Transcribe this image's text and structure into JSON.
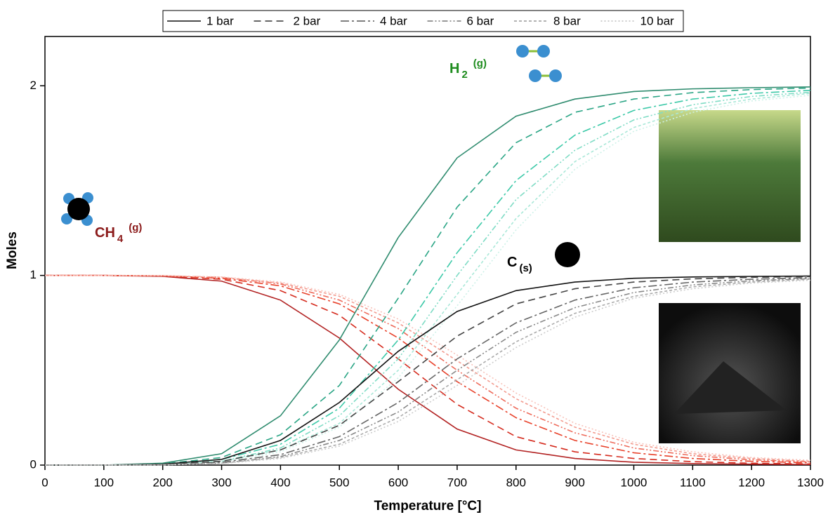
{
  "chart_data": {
    "type": "line",
    "x_label": "Temperature [°C]",
    "y_label": "Moles",
    "x": [
      0,
      100,
      200,
      300,
      400,
      500,
      600,
      700,
      800,
      900,
      1000,
      1100,
      1200,
      1300
    ],
    "xlim": [
      0,
      1300
    ],
    "xticks": [
      0,
      100,
      200,
      300,
      400,
      500,
      600,
      700,
      800,
      900,
      1000,
      1100,
      1200,
      1300
    ],
    "ylim": [
      0,
      2.26
    ],
    "yticks": [
      0,
      1,
      2
    ],
    "pressures": [
      {
        "name": "1 bar",
        "dash": "none"
      },
      {
        "name": "2 bar",
        "dash": "10,6"
      },
      {
        "name": "4 bar",
        "dash": "12,4,3,4"
      },
      {
        "name": "6 bar",
        "dash": "8,3,2,3,2,3"
      },
      {
        "name": "8 bar",
        "dash": "4,3"
      },
      {
        "name": "10 bar",
        "dash": "2,3"
      }
    ],
    "legend_colors": [
      "#111111",
      "#333333",
      "#555555",
      "#777777",
      "#999999",
      "#bbbbbb"
    ],
    "species": [
      {
        "label": {
          "main": "CH",
          "sub": "4",
          "state": "(g)"
        },
        "label_color": "#8b1a1a",
        "series": [
          {
            "color": "#b22222",
            "values": [
              1,
              1,
              0.995,
              0.97,
              0.87,
              0.67,
              0.4,
              0.19,
              0.08,
              0.035,
              0.015,
              0.008,
              0.005,
              0.003
            ]
          },
          {
            "color": "#d52b1e",
            "values": [
              1,
              1,
              0.997,
              0.98,
              0.92,
              0.79,
              0.56,
              0.32,
              0.15,
              0.07,
              0.035,
              0.018,
              0.01,
              0.006
            ]
          },
          {
            "color": "#e8412a",
            "values": [
              1,
              1,
              0.998,
              0.985,
              0.945,
              0.85,
              0.67,
              0.44,
              0.25,
              0.13,
              0.065,
              0.035,
              0.02,
              0.012
            ]
          },
          {
            "color": "#ee6a5a",
            "values": [
              1,
              1,
              0.998,
              0.99,
              0.955,
              0.87,
              0.72,
              0.5,
              0.3,
              0.17,
              0.09,
              0.05,
              0.028,
              0.017
            ]
          },
          {
            "color": "#f39b8f",
            "values": [
              1,
              1,
              0.999,
              0.99,
              0.96,
              0.89,
              0.75,
              0.55,
              0.35,
              0.2,
              0.11,
              0.06,
              0.035,
              0.02
            ]
          },
          {
            "color": "#f8c2ba",
            "values": [
              1,
              1,
              0.999,
              0.992,
              0.965,
              0.9,
              0.77,
              0.58,
              0.38,
              0.22,
              0.12,
              0.07,
              0.04,
              0.025
            ]
          }
        ]
      },
      {
        "label": {
          "main": "H",
          "sub": "2",
          "state": "(g)"
        },
        "label_color": "#1e8c1e",
        "series": [
          {
            "color": "#2e8b6e",
            "values": [
              0,
              0,
              0.01,
              0.06,
              0.26,
              0.66,
              1.2,
              1.62,
              1.84,
              1.93,
              1.97,
              1.984,
              1.99,
              1.994
            ]
          },
          {
            "color": "#2aa585",
            "values": [
              0,
              0,
              0.006,
              0.04,
              0.16,
              0.42,
              0.88,
              1.36,
              1.7,
              1.86,
              1.93,
              1.964,
              1.98,
              1.988
            ]
          },
          {
            "color": "#3cc9a8",
            "values": [
              0,
              0,
              0.004,
              0.03,
              0.11,
              0.3,
              0.66,
              1.12,
              1.5,
              1.74,
              1.87,
              1.93,
              1.96,
              1.976
            ]
          },
          {
            "color": "#7fdcc5",
            "values": [
              0,
              0,
              0.004,
              0.02,
              0.09,
              0.26,
              0.56,
              1,
              1.4,
              1.66,
              1.82,
              1.9,
              1.944,
              1.966
            ]
          },
          {
            "color": "#a9e8d8",
            "values": [
              0,
              0,
              0.002,
              0.02,
              0.08,
              0.22,
              0.5,
              0.9,
              1.3,
              1.6,
              1.78,
              1.88,
              1.93,
              1.96
            ]
          },
          {
            "color": "#cdf1e8",
            "values": [
              0,
              0,
              0.002,
              0.016,
              0.07,
              0.2,
              0.46,
              0.84,
              1.24,
              1.56,
              1.76,
              1.86,
              1.92,
              1.95
            ]
          }
        ]
      },
      {
        "label": {
          "main": "C",
          "sub": "(s)"
        },
        "label_color": "#000000",
        "series": [
          {
            "color": "#111111",
            "values": [
              0,
              0,
              0.005,
              0.03,
              0.13,
              0.33,
              0.6,
              0.81,
              0.92,
              0.965,
              0.985,
              0.992,
              0.995,
              0.997
            ]
          },
          {
            "color": "#444444",
            "values": [
              0,
              0,
              0.003,
              0.02,
              0.08,
              0.21,
              0.44,
              0.68,
              0.85,
              0.93,
              0.965,
              0.982,
              0.99,
              0.994
            ]
          },
          {
            "color": "#666666",
            "values": [
              0,
              0,
              0.002,
              0.015,
              0.055,
              0.15,
              0.33,
              0.56,
              0.75,
              0.87,
              0.935,
              0.965,
              0.98,
              0.988
            ]
          },
          {
            "color": "#888888",
            "values": [
              0,
              0,
              0.002,
              0.01,
              0.045,
              0.13,
              0.28,
              0.5,
              0.7,
              0.83,
              0.91,
              0.95,
              0.972,
              0.983
            ]
          },
          {
            "color": "#aaaaaa",
            "values": [
              0,
              0,
              0.001,
              0.01,
              0.04,
              0.11,
              0.25,
              0.45,
              0.65,
              0.8,
              0.89,
              0.94,
              0.965,
              0.98
            ]
          },
          {
            "color": "#cccccc",
            "values": [
              0,
              0,
              0.001,
              0.008,
              0.035,
              0.1,
              0.23,
              0.42,
              0.62,
              0.78,
              0.88,
              0.93,
              0.96,
              0.975
            ]
          }
        ]
      }
    ]
  }
}
